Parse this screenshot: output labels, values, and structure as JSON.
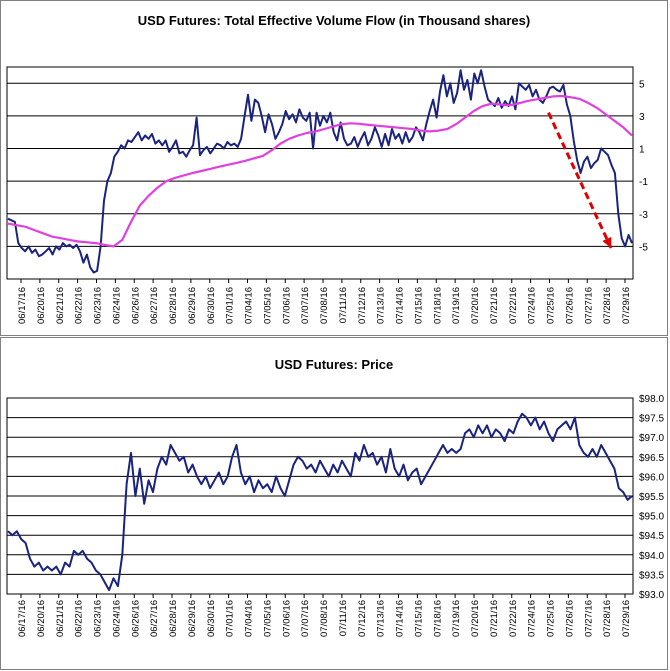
{
  "chart_data": [
    {
      "type": "line",
      "title": "USD Futures: Total Effective Volume Flow (in Thousand shares)",
      "ylim": [
        -7,
        6
      ],
      "yticks": [
        "5",
        "3",
        "1",
        "-1",
        "-3",
        "-5"
      ],
      "ytick_values": [
        5,
        3,
        1,
        -1,
        -3,
        -5
      ],
      "x_tick_labels": [
        "06/17/16",
        "06/20/16",
        "06/21/16",
        "06/22/16",
        "06/23/16",
        "06/24/16",
        "06/26/16",
        "06/27/16",
        "06/28/16",
        "06/29/16",
        "06/30/16",
        "07/01/16",
        "07/04/16",
        "07/05/16",
        "07/06/16",
        "07/07/16",
        "07/08/16",
        "07/11/16",
        "07/12/16",
        "07/13/16",
        "07/14/16",
        "07/15/16",
        "07/18/16",
        "07/19/16",
        "07/20/16",
        "07/21/16",
        "07/22/16",
        "07/24/16",
        "07/25/16",
        "07/26/16",
        "07/27/16",
        "07/28/16",
        "07/29/16"
      ],
      "grid": "horizontal",
      "series": [
        {
          "color": "#1a237e",
          "values": [
            -3.3,
            -3.4,
            -3.5,
            -4.8,
            -5.1,
            -5.3,
            -5.0,
            -5.4,
            -5.2,
            -5.6,
            -5.5,
            -5.3,
            -5.1,
            -5.5,
            -5.0,
            -5.2,
            -4.8,
            -5.0,
            -4.9,
            -5.1,
            -4.9,
            -5.3,
            -6.0,
            -5.5,
            -6.3,
            -6.6,
            -6.5,
            -5.0,
            -2.2,
            -1.0,
            -0.5,
            0.5,
            0.8,
            1.2,
            1.0,
            1.5,
            1.4,
            1.7,
            2.0,
            1.5,
            1.8,
            1.6,
            1.9,
            1.3,
            1.5,
            1.2,
            1.5,
            0.8,
            1.1,
            1.5,
            0.7,
            0.8,
            0.5,
            0.9,
            1.2,
            2.9,
            0.6,
            0.9,
            1.1,
            0.7,
            1.0,
            1.3,
            1.2,
            1.0,
            1.4,
            1.2,
            1.3,
            1.1,
            1.6,
            3.0,
            4.3,
            2.7,
            4.0,
            3.8,
            3.0,
            2.0,
            3.1,
            2.5,
            1.6,
            2.0,
            2.5,
            3.3,
            2.8,
            3.1,
            2.6,
            3.4,
            2.9,
            2.7,
            3.2,
            1.0,
            3.2,
            2.4,
            3.0,
            2.6,
            3.2,
            2.0,
            1.5,
            2.6,
            1.6,
            1.2,
            1.3,
            1.7,
            1.1,
            1.6,
            2.0,
            1.2,
            1.6,
            2.3,
            1.8,
            1.1,
            1.9,
            1.2,
            2.2,
            1.6,
            1.9,
            1.3,
            2.0,
            1.4,
            1.7,
            2.3,
            2.0,
            1.5,
            2.5,
            3.3,
            4.0,
            2.9,
            4.5,
            5.5,
            4.2,
            5.0,
            3.8,
            4.4,
            5.8,
            4.6,
            5.2,
            4.0,
            5.6,
            5.0,
            5.8,
            4.8,
            4.0,
            3.8,
            3.6,
            4.1,
            3.5,
            3.9,
            3.6,
            4.2,
            3.4,
            5.0,
            4.8,
            4.6,
            4.9,
            4.2,
            4.6,
            4.0,
            3.8,
            4.2,
            4.7,
            4.8,
            4.6,
            4.5,
            4.9,
            3.7,
            3.0,
            1.5,
            0.3,
            -0.5,
            0.2,
            0.5,
            -0.2,
            0.1,
            0.3,
            1.0,
            0.8,
            0.6,
            0.0,
            -0.5,
            -3.0,
            -4.5,
            -5.0,
            -4.3,
            -4.8
          ]
        },
        {
          "color": "#e040e0",
          "values": [
            -3.6,
            -3.7,
            -3.8,
            -4.0,
            -4.2,
            -4.4,
            -4.5,
            -4.6,
            -4.7,
            -4.75,
            -4.8,
            -4.9,
            -5.0,
            -4.6,
            -3.5,
            -2.5,
            -1.9,
            -1.4,
            -1.0,
            -0.8,
            -0.65,
            -0.5,
            -0.38,
            -0.25,
            -0.12,
            0.0,
            0.12,
            0.25,
            0.4,
            0.55,
            0.9,
            1.3,
            1.6,
            1.8,
            1.95,
            2.05,
            2.2,
            2.35,
            2.5,
            2.55,
            2.52,
            2.45,
            2.4,
            2.35,
            2.3,
            2.25,
            2.2,
            2.1,
            2.05,
            2.1,
            2.2,
            2.5,
            2.9,
            3.3,
            3.6,
            3.75,
            3.7,
            3.65,
            3.75,
            3.9,
            4.0,
            4.1,
            4.2,
            4.22,
            4.15,
            4.05,
            3.8,
            3.5,
            3.1,
            2.7,
            2.3,
            1.8
          ]
        }
      ],
      "annotation": {
        "type": "arrow",
        "color": "#e00000",
        "style": "dashed",
        "from": [
          0.865,
          3.2
        ],
        "to": [
          0.965,
          -5.1
        ]
      }
    },
    {
      "type": "line",
      "title": "USD Futures: Price",
      "ylim": [
        93.0,
        98.0
      ],
      "yticks": [
        "$98.0",
        "$97.5",
        "$97.0",
        "$96.5",
        "$96.0",
        "$95.5",
        "$95.0",
        "$94.5",
        "$94.0",
        "$93.5",
        "$93.0"
      ],
      "ytick_values": [
        98.0,
        97.5,
        97.0,
        96.5,
        96.0,
        95.5,
        95.0,
        94.5,
        94.0,
        93.5,
        93.0
      ],
      "x_tick_labels": [
        "06/17/16",
        "06/20/16",
        "06/21/16",
        "06/22/16",
        "06/23/16",
        "06/24/16",
        "06/26/16",
        "06/27/16",
        "06/28/16",
        "06/29/16",
        "06/30/16",
        "07/01/16",
        "07/04/16",
        "07/05/16",
        "07/06/16",
        "07/07/16",
        "07/08/16",
        "07/11/16",
        "07/12/16",
        "07/13/16",
        "07/14/16",
        "07/15/16",
        "07/18/16",
        "07/19/16",
        "07/20/16",
        "07/21/16",
        "07/22/16",
        "07/24/16",
        "07/25/16",
        "07/26/16",
        "07/27/16",
        "07/28/16",
        "07/29/16"
      ],
      "grid": "horizontal",
      "series": [
        {
          "color": "#1a237e",
          "values": [
            94.6,
            94.5,
            94.6,
            94.4,
            94.3,
            93.9,
            93.7,
            93.8,
            93.6,
            93.7,
            93.6,
            93.7,
            93.5,
            93.8,
            93.7,
            94.1,
            94.0,
            94.1,
            93.9,
            93.8,
            93.6,
            93.5,
            93.3,
            93.1,
            93.4,
            93.2,
            94.0,
            95.8,
            96.6,
            95.5,
            96.2,
            95.3,
            95.9,
            95.6,
            96.2,
            96.5,
            96.3,
            96.8,
            96.6,
            96.4,
            96.5,
            96.1,
            96.3,
            96.0,
            95.8,
            96.0,
            95.7,
            95.9,
            96.1,
            95.8,
            96.0,
            96.5,
            96.8,
            96.1,
            95.8,
            96.0,
            95.6,
            95.9,
            95.7,
            95.8,
            95.6,
            96.0,
            95.7,
            95.5,
            95.9,
            96.3,
            96.5,
            96.4,
            96.2,
            96.3,
            96.1,
            96.4,
            96.2,
            96.0,
            96.3,
            96.1,
            96.4,
            96.2,
            96.0,
            96.6,
            96.4,
            96.8,
            96.5,
            96.6,
            96.3,
            96.5,
            96.1,
            96.7,
            96.2,
            96.0,
            96.3,
            95.9,
            96.1,
            96.2,
            95.8,
            96.0,
            96.2,
            96.4,
            96.6,
            96.8,
            96.6,
            96.7,
            96.6,
            96.7,
            97.1,
            97.2,
            97.0,
            97.3,
            97.1,
            97.3,
            97.0,
            97.2,
            97.1,
            96.9,
            97.2,
            97.1,
            97.4,
            97.6,
            97.5,
            97.3,
            97.5,
            97.2,
            97.4,
            97.1,
            96.9,
            97.2,
            97.3,
            97.4,
            97.2,
            97.5,
            96.8,
            96.6,
            96.5,
            96.7,
            96.5,
            96.8,
            96.6,
            96.4,
            96.2,
            95.7,
            95.6,
            95.4,
            95.5
          ]
        }
      ]
    }
  ]
}
